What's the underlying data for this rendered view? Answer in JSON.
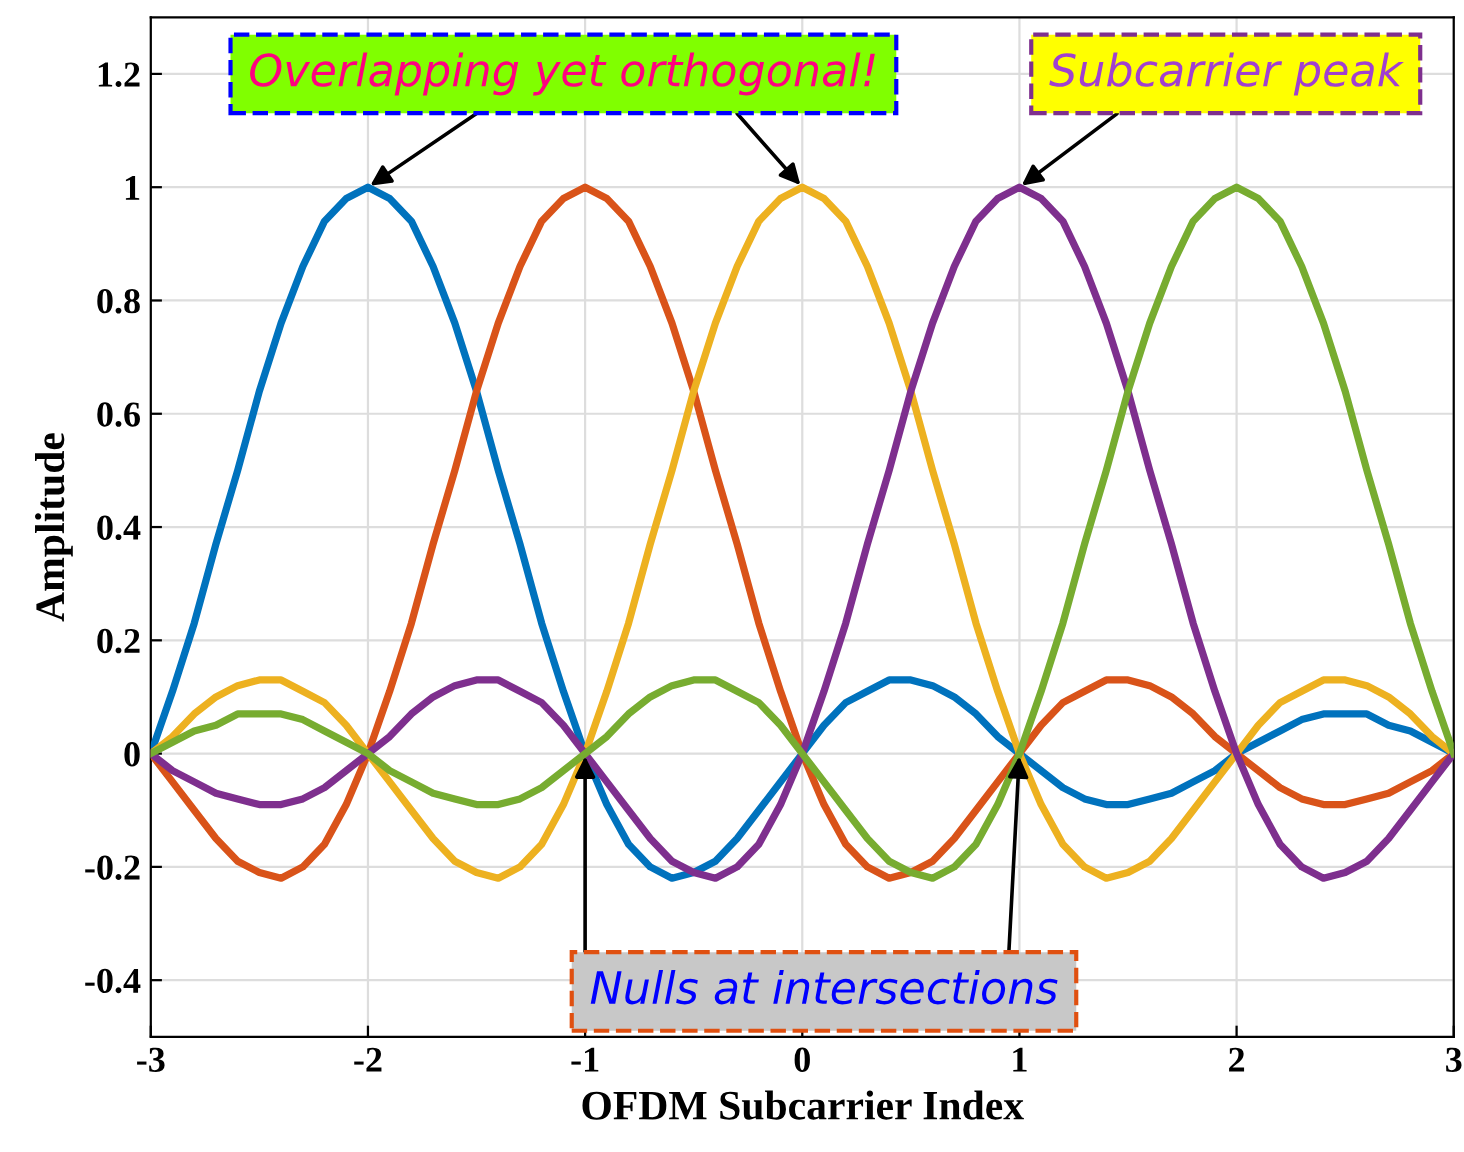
{
  "chart_data": {
    "type": "line",
    "xlabel": "OFDM Subcarrier Index",
    "ylabel": "Amplitude",
    "x": [
      -3,
      -2.9,
      -2.8,
      -2.7,
      -2.6,
      -2.5,
      -2.4,
      -2.3,
      -2.2,
      -2.1,
      -2,
      -1.9,
      -1.8,
      -1.7,
      -1.6,
      -1.5,
      -1.4,
      -1.3,
      -1.2,
      -1.1,
      -1,
      -0.9,
      -0.8,
      -0.7,
      -0.6,
      -0.5,
      -0.4,
      -0.3,
      -0.2,
      -0.1,
      0,
      0.1,
      0.2,
      0.3,
      0.4,
      0.5,
      0.6,
      0.7,
      0.8,
      0.9,
      1,
      1.1,
      1.2,
      1.3,
      1.4,
      1.5,
      1.6,
      1.7,
      1.8,
      1.9,
      2,
      2.1,
      2.2,
      2.3,
      2.4,
      2.5,
      2.6,
      2.7,
      2.8,
      2.9,
      3
    ],
    "series": [
      {
        "color": "#0072bd",
        "values": [
          0,
          0.11,
          0.23,
          0.37,
          0.5,
          0.64,
          0.76,
          0.86,
          0.94,
          0.98,
          1.0,
          0.98,
          0.94,
          0.86,
          0.76,
          0.64,
          0.5,
          0.37,
          0.23,
          0.11,
          0,
          -0.09,
          -0.16,
          -0.2,
          -0.22,
          -0.21,
          -0.19,
          -0.15,
          -0.1,
          -0.05,
          0,
          0.05,
          0.09,
          0.11,
          0.13,
          0.13,
          0.12,
          0.1,
          0.07,
          0.03,
          0,
          -0.03,
          -0.06,
          -0.08,
          -0.09,
          -0.09,
          -0.08,
          -0.07,
          -0.05,
          -0.03,
          0,
          0.02,
          0.04,
          0.06,
          0.07,
          0.07,
          0.07,
          0.05,
          0.04,
          0.02,
          0
        ]
      },
      {
        "color": "#d95319",
        "values": [
          0,
          -0.05,
          -0.1,
          -0.15,
          -0.19,
          -0.21,
          -0.22,
          -0.2,
          -0.16,
          -0.09,
          0,
          0.11,
          0.23,
          0.37,
          0.5,
          0.64,
          0.76,
          0.86,
          0.94,
          0.98,
          1.0,
          0.98,
          0.94,
          0.86,
          0.76,
          0.64,
          0.5,
          0.37,
          0.23,
          0.11,
          0,
          -0.09,
          -0.16,
          -0.2,
          -0.22,
          -0.21,
          -0.19,
          -0.15,
          -0.1,
          -0.05,
          0,
          0.05,
          0.09,
          0.11,
          0.13,
          0.13,
          0.12,
          0.1,
          0.07,
          0.03,
          0,
          -0.03,
          -0.06,
          -0.08,
          -0.09,
          -0.09,
          -0.08,
          -0.07,
          -0.05,
          -0.03,
          0
        ]
      },
      {
        "color": "#edb120",
        "values": [
          0,
          0.03,
          0.07,
          0.1,
          0.12,
          0.13,
          0.13,
          0.11,
          0.09,
          0.05,
          0,
          -0.05,
          -0.1,
          -0.15,
          -0.19,
          -0.21,
          -0.22,
          -0.2,
          -0.16,
          -0.09,
          0,
          0.11,
          0.23,
          0.37,
          0.5,
          0.64,
          0.76,
          0.86,
          0.94,
          0.98,
          1.0,
          0.98,
          0.94,
          0.86,
          0.76,
          0.64,
          0.5,
          0.37,
          0.23,
          0.11,
          0,
          -0.09,
          -0.16,
          -0.2,
          -0.22,
          -0.21,
          -0.19,
          -0.15,
          -0.1,
          -0.05,
          0,
          0.05,
          0.09,
          0.11,
          0.13,
          0.13,
          0.12,
          0.1,
          0.07,
          0.03,
          0
        ]
      },
      {
        "color": "#7e2f8e",
        "values": [
          0,
          -0.03,
          -0.05,
          -0.07,
          -0.08,
          -0.09,
          -0.09,
          -0.08,
          -0.06,
          -0.03,
          0,
          0.03,
          0.07,
          0.1,
          0.12,
          0.13,
          0.13,
          0.11,
          0.09,
          0.05,
          0,
          -0.05,
          -0.1,
          -0.15,
          -0.19,
          -0.21,
          -0.22,
          -0.2,
          -0.16,
          -0.09,
          0,
          0.11,
          0.23,
          0.37,
          0.5,
          0.64,
          0.76,
          0.86,
          0.94,
          0.98,
          1.0,
          0.98,
          0.94,
          0.86,
          0.76,
          0.64,
          0.5,
          0.37,
          0.23,
          0.11,
          0,
          -0.09,
          -0.16,
          -0.2,
          -0.22,
          -0.21,
          -0.19,
          -0.15,
          -0.1,
          -0.05,
          0
        ]
      },
      {
        "color": "#77ac30",
        "values": [
          0,
          0.02,
          0.04,
          0.05,
          0.07,
          0.07,
          0.07,
          0.06,
          0.04,
          0.02,
          0,
          -0.03,
          -0.05,
          -0.07,
          -0.08,
          -0.09,
          -0.09,
          -0.08,
          -0.06,
          -0.03,
          0,
          0.03,
          0.07,
          0.1,
          0.12,
          0.13,
          0.13,
          0.11,
          0.09,
          0.05,
          0,
          -0.05,
          -0.1,
          -0.15,
          -0.19,
          -0.21,
          -0.22,
          -0.2,
          -0.16,
          -0.09,
          0,
          0.11,
          0.23,
          0.37,
          0.5,
          0.64,
          0.76,
          0.86,
          0.94,
          0.98,
          1.0,
          0.98,
          0.94,
          0.86,
          0.76,
          0.64,
          0.5,
          0.37,
          0.23,
          0.11,
          0
        ]
      }
    ],
    "annotations": [
      {
        "text": "Overlapping yet orthogonal!",
        "x": -2,
        "y": 1
      },
      {
        "text": "Subcarrier peak",
        "x": 1,
        "y": 1
      },
      {
        "text": "Nulls at intersections",
        "x": -1,
        "y": 0
      }
    ],
    "xlim": [
      -3,
      3
    ],
    "ylim": [
      -0.5,
      1.3
    ],
    "xticks": [
      -3,
      -2,
      -1,
      0,
      1,
      2,
      3
    ],
    "yticks": [
      -0.4,
      -0.2,
      0,
      0.2,
      0.4,
      0.6,
      0.8,
      1,
      1.2
    ],
    "grid": true,
    "marker": "none",
    "line_style": "solid"
  }
}
